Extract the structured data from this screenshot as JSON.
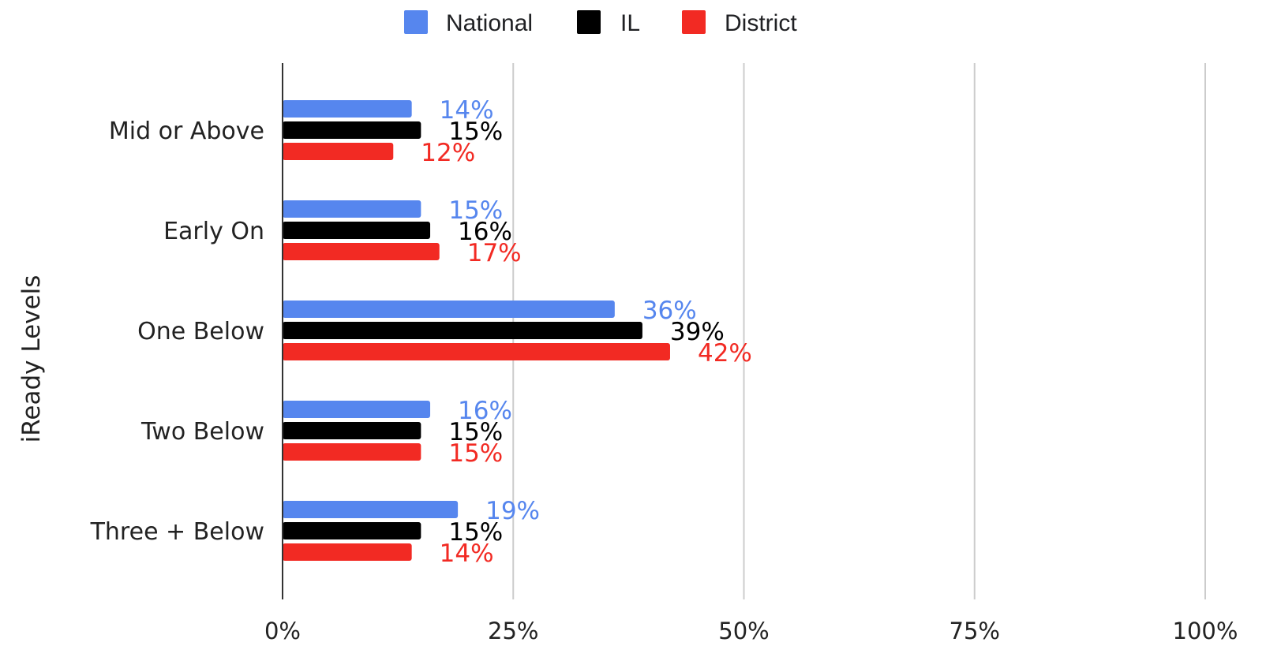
{
  "chart_data": {
    "type": "bar",
    "orientation": "horizontal",
    "title": "",
    "xlabel": "",
    "ylabel": "iReady Levels",
    "categories": [
      "Mid or Above",
      "Early On",
      "One Below",
      "Two Below",
      "Three + Below"
    ],
    "series": [
      {
        "name": "National",
        "color": "#5686ee",
        "values": [
          14,
          15,
          36,
          16,
          19
        ],
        "labels": [
          "14%",
          "15%",
          "36%",
          "16%",
          "19%"
        ]
      },
      {
        "name": "IL",
        "color": "#000000",
        "values": [
          15,
          16,
          39,
          15,
          15
        ],
        "labels": [
          "15%",
          "16%",
          "39%",
          "15%",
          "15%"
        ]
      },
      {
        "name": "District",
        "color": "#f22a23",
        "values": [
          12,
          17,
          42,
          15,
          14
        ],
        "labels": [
          "12%",
          "17%",
          "42%",
          "15%",
          "14%"
        ]
      }
    ],
    "xlim": [
      0,
      100
    ],
    "x_ticks": [
      0,
      25,
      50,
      75,
      100
    ],
    "x_tick_labels": [
      "0%",
      "25%",
      "50%",
      "75%",
      "100%"
    ],
    "grid": true,
    "legend_position": "top"
  }
}
